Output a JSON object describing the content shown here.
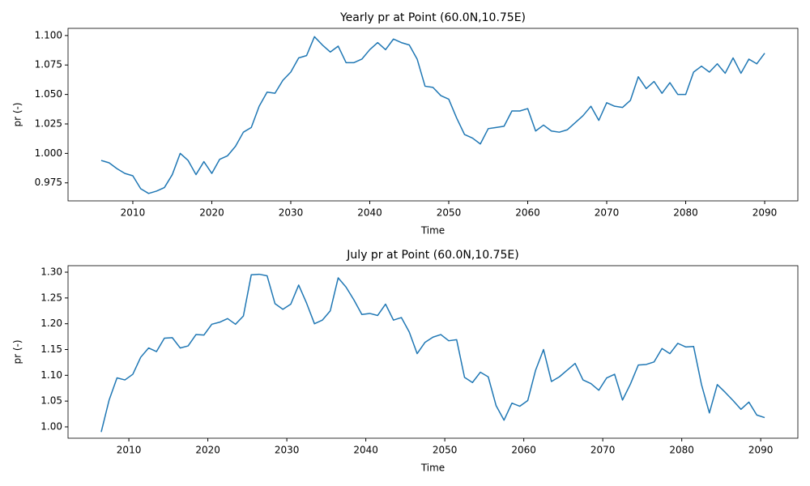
{
  "chart_data": [
    {
      "type": "line",
      "title": "Yearly pr at Point (60.0N,10.75E)",
      "xlabel": "Time",
      "ylabel": "pr (-)",
      "x": [
        2006,
        2007,
        2008,
        2009,
        2010,
        2011,
        2012,
        2013,
        2014,
        2015,
        2016,
        2017,
        2018,
        2019,
        2020,
        2021,
        2022,
        2023,
        2024,
        2025,
        2026,
        2027,
        2028,
        2029,
        2030,
        2031,
        2032,
        2033,
        2034,
        2035,
        2036,
        2037,
        2038,
        2039,
        2040,
        2041,
        2042,
        2043,
        2044,
        2045,
        2046,
        2047,
        2048,
        2049,
        2050,
        2051,
        2052,
        2053,
        2054,
        2055,
        2056,
        2057,
        2058,
        2059,
        2060,
        2061,
        2062,
        2063,
        2064,
        2065,
        2066,
        2067,
        2068,
        2069,
        2070,
        2071,
        2072,
        2073,
        2074,
        2075,
        2076,
        2077,
        2078,
        2079,
        2080,
        2081,
        2082,
        2083,
        2084,
        2085,
        2086,
        2087,
        2088,
        2089,
        2090
      ],
      "series": [
        {
          "color": "#1f77b4",
          "values": [
            0.994,
            0.992,
            0.987,
            0.983,
            0.981,
            0.97,
            0.966,
            0.968,
            0.971,
            0.982,
            1.0,
            0.994,
            0.982,
            0.993,
            0.983,
            0.995,
            0.998,
            1.006,
            1.018,
            1.022,
            1.04,
            1.052,
            1.051,
            1.062,
            1.069,
            1.081,
            1.083,
            1.099,
            1.092,
            1.086,
            1.091,
            1.077,
            1.077,
            1.08,
            1.088,
            1.094,
            1.088,
            1.097,
            1.094,
            1.092,
            1.08,
            1.057,
            1.056,
            1.049,
            1.046,
            1.03,
            1.016,
            1.013,
            1.008,
            1.021,
            1.022,
            1.023,
            1.036,
            1.036,
            1.038,
            1.019,
            1.024,
            1.019,
            1.018,
            1.02,
            1.026,
            1.032,
            1.04,
            1.028,
            1.043,
            1.04,
            1.039,
            1.045,
            1.065,
            1.055,
            1.061,
            1.051,
            1.06,
            1.05,
            1.05,
            1.069,
            1.074,
            1.069,
            1.076,
            1.068,
            1.081,
            1.068,
            1.08,
            1.076,
            1.085
          ]
        }
      ],
      "xlim": [
        2001.8,
        2094.2
      ],
      "ylim": [
        0.9597,
        1.1061
      ],
      "xticks": [
        2010,
        2020,
        2030,
        2040,
        2050,
        2060,
        2070,
        2080,
        2090
      ],
      "yticks": [
        {
          "value": 0.975,
          "label": "0.975"
        },
        {
          "value": 1.0,
          "label": "1.000"
        },
        {
          "value": 1.025,
          "label": "1.025"
        },
        {
          "value": 1.05,
          "label": "1.050"
        },
        {
          "value": 1.075,
          "label": "1.075"
        },
        {
          "value": 1.1,
          "label": "1.100"
        }
      ]
    },
    {
      "type": "line",
      "title": "July pr at Point (60.0N,10.75E)",
      "xlabel": "Time",
      "ylabel": "pr (-)",
      "x": [
        2006.5,
        2007.5,
        2008.5,
        2009.5,
        2010.5,
        2011.5,
        2012.5,
        2013.5,
        2014.5,
        2015.5,
        2016.5,
        2017.5,
        2018.5,
        2019.5,
        2020.5,
        2021.5,
        2022.5,
        2023.5,
        2024.5,
        2025.5,
        2026.5,
        2027.5,
        2028.5,
        2029.5,
        2030.5,
        2031.5,
        2032.5,
        2033.5,
        2034.5,
        2035.5,
        2036.5,
        2037.5,
        2038.5,
        2039.5,
        2040.5,
        2041.5,
        2042.5,
        2043.5,
        2044.5,
        2045.5,
        2046.5,
        2047.5,
        2048.5,
        2049.5,
        2050.5,
        2051.5,
        2052.5,
        2053.5,
        2054.5,
        2055.5,
        2056.5,
        2057.5,
        2058.5,
        2059.5,
        2060.5,
        2061.5,
        2062.5,
        2063.5,
        2064.5,
        2065.5,
        2066.5,
        2067.5,
        2068.5,
        2069.5,
        2070.5,
        2071.5,
        2072.5,
        2073.5,
        2074.5,
        2075.5,
        2076.5,
        2077.5,
        2078.5,
        2079.5,
        2080.5,
        2081.5,
        2082.5,
        2083.5,
        2084.5,
        2085.5,
        2086.5,
        2087.5,
        2088.5,
        2089.5,
        2090.5
      ],
      "series": [
        {
          "color": "#1f77b4",
          "values": [
            0.99,
            1.052,
            1.095,
            1.091,
            1.102,
            1.135,
            1.153,
            1.146,
            1.172,
            1.173,
            1.153,
            1.157,
            1.179,
            1.178,
            1.199,
            1.203,
            1.21,
            1.199,
            1.215,
            1.295,
            1.296,
            1.293,
            1.239,
            1.228,
            1.238,
            1.275,
            1.24,
            1.2,
            1.207,
            1.225,
            1.289,
            1.271,
            1.246,
            1.218,
            1.22,
            1.216,
            1.238,
            1.207,
            1.212,
            1.184,
            1.142,
            1.164,
            1.174,
            1.179,
            1.167,
            1.169,
            1.096,
            1.086,
            1.106,
            1.097,
            1.041,
            1.013,
            1.046,
            1.04,
            1.051,
            1.11,
            1.15,
            1.088,
            1.097,
            1.11,
            1.123,
            1.091,
            1.084,
            1.071,
            1.095,
            1.102,
            1.052,
            1.083,
            1.12,
            1.121,
            1.126,
            1.152,
            1.142,
            1.162,
            1.155,
            1.156,
            1.082,
            1.027,
            1.082,
            1.067,
            1.051,
            1.034,
            1.048,
            1.023,
            1.018
          ]
        }
      ],
      "xlim": [
        2002.3,
        2094.7
      ],
      "ylim": [
        0.978,
        1.3126
      ],
      "xticks": [
        2010,
        2020,
        2030,
        2040,
        2050,
        2060,
        2070,
        2080,
        2090
      ],
      "yticks": [
        {
          "value": 1.0,
          "label": "1.00"
        },
        {
          "value": 1.05,
          "label": "1.05"
        },
        {
          "value": 1.1,
          "label": "1.10"
        },
        {
          "value": 1.15,
          "label": "1.15"
        },
        {
          "value": 1.2,
          "label": "1.20"
        },
        {
          "value": 1.25,
          "label": "1.25"
        },
        {
          "value": 1.3,
          "label": "1.30"
        }
      ]
    }
  ]
}
